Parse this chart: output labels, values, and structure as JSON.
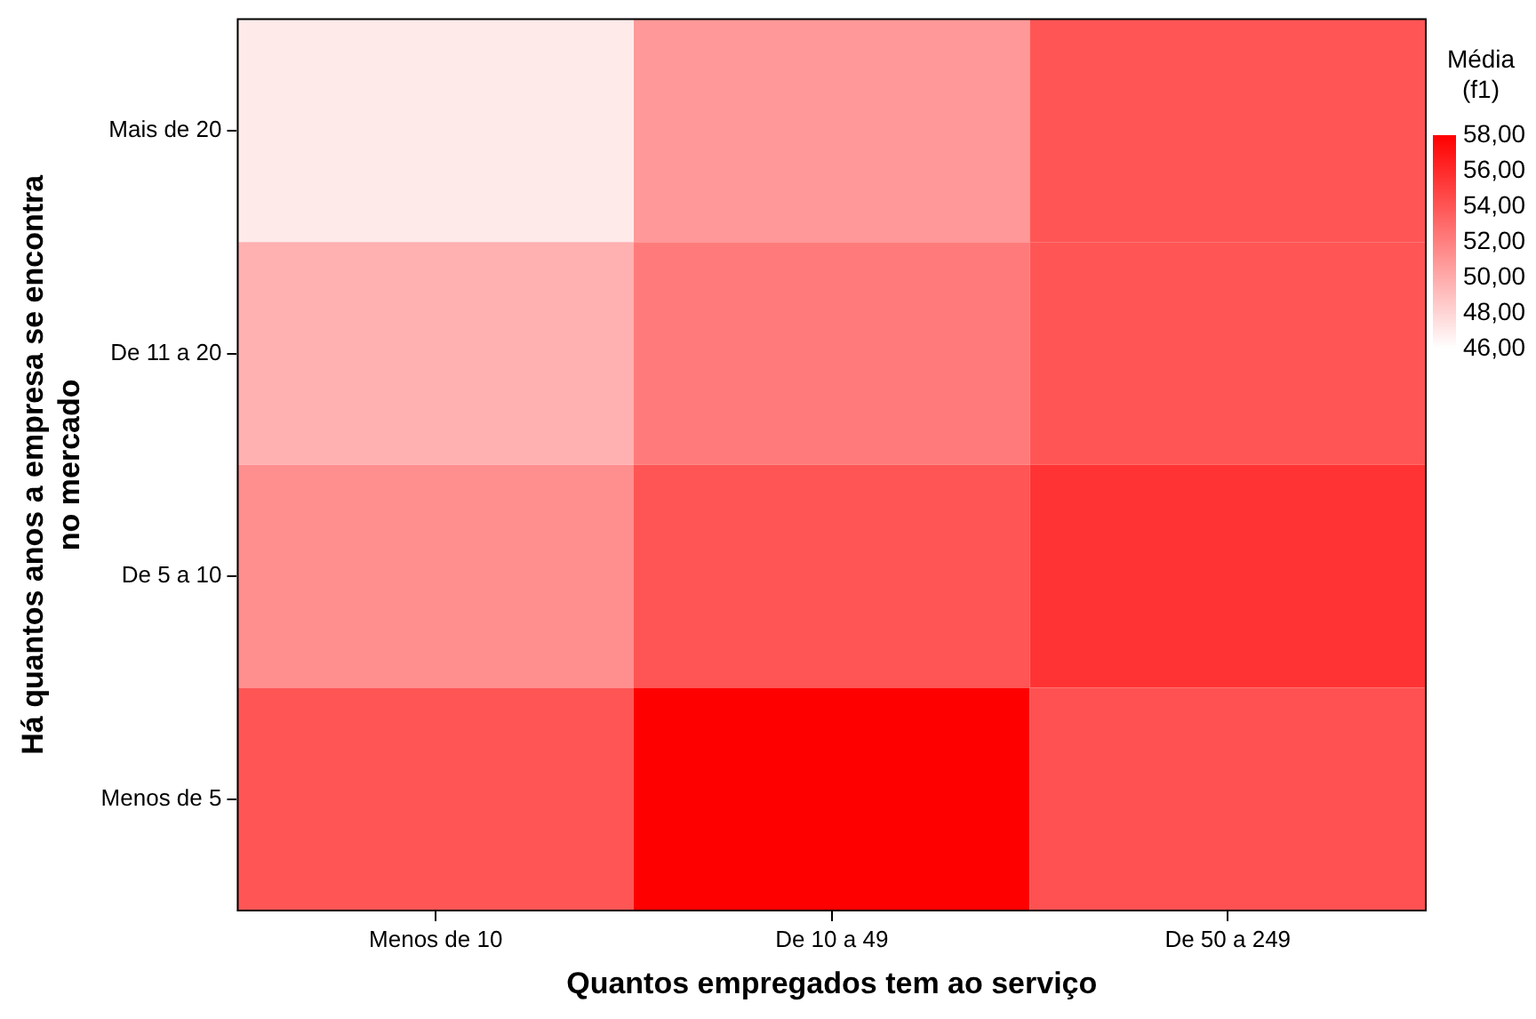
{
  "chart_data": {
    "type": "heatmap",
    "xlabel": "Quantos empregados tem ao serviço",
    "ylabel": "Há quantos anos a empresa se encontra no mercado",
    "legend_title": "Média (f1)",
    "categories": [
      "Menos de 10",
      "De 10 a 49",
      "De 50 a 249"
    ],
    "y_categories": [
      "Mais de 20",
      "De 11 a 20",
      "De 5 a 10",
      "Menos de 5"
    ],
    "cells": [
      [
        47,
        50.8,
        54
      ],
      [
        49.7,
        52.2,
        54
      ],
      [
        51.3,
        54,
        55.6
      ],
      [
        54,
        58,
        54.2
      ]
    ],
    "clim": [
      46,
      58
    ],
    "cticks": [
      {
        "value": 58,
        "label": "58,00"
      },
      {
        "value": 56,
        "label": "56,00"
      },
      {
        "value": 54,
        "label": "54,00"
      },
      {
        "value": 52,
        "label": "52,00"
      },
      {
        "value": 50,
        "label": "50,00"
      },
      {
        "value": 48,
        "label": "48,00"
      },
      {
        "value": 46,
        "label": "46,00"
      }
    ]
  }
}
